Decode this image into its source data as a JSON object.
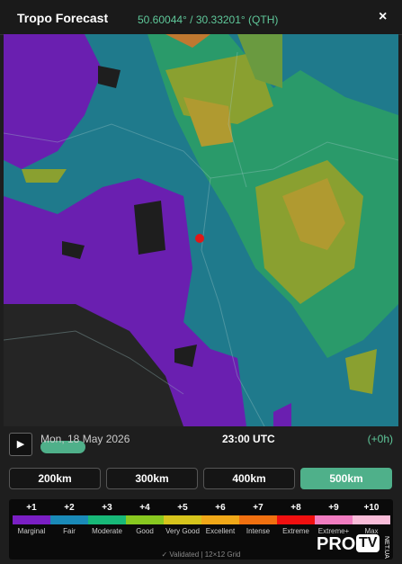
{
  "header": {
    "title": "Tropo Forecast",
    "coords": "50.60044° / 30.33201° (QTH)",
    "close": "×"
  },
  "controls": {
    "play": "▶",
    "date": "Mon, 18 May 2026",
    "time": "23:00 UTC",
    "offset": "(+0h)"
  },
  "ranges": {
    "options": [
      "200km",
      "300km",
      "400km",
      "500km"
    ],
    "selected": "500km"
  },
  "legend": [
    {
      "level": "+1",
      "label": "Marginal",
      "color": "#7a1fc4"
    },
    {
      "level": "+2",
      "label": "Fair",
      "color": "#1a8ab8"
    },
    {
      "level": "+3",
      "label": "Moderate",
      "color": "#18b878"
    },
    {
      "level": "+4",
      "label": "Good",
      "color": "#88c820"
    },
    {
      "level": "+5",
      "label": "Very Good",
      "color": "#d6c41c"
    },
    {
      "level": "+6",
      "label": "Excellent",
      "color": "#f0a818"
    },
    {
      "level": "+7",
      "label": "Intense",
      "color": "#f07010"
    },
    {
      "level": "+8",
      "label": "Extreme",
      "color": "#f01010"
    },
    {
      "level": "+9",
      "label": "Extreme+",
      "color": "#f07cc0"
    },
    {
      "level": "+10",
      "label": "Max",
      "color": "#f8bcd8"
    }
  ],
  "footer": "✓ Validated | 12×12 Grid",
  "watermark": {
    "brand": "PRO",
    "tv": "TV",
    "domain": "NET.UA"
  }
}
